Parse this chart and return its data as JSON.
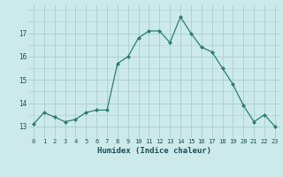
{
  "x": [
    0,
    1,
    2,
    3,
    4,
    5,
    6,
    7,
    8,
    9,
    10,
    11,
    12,
    13,
    14,
    15,
    16,
    17,
    18,
    19,
    20,
    21,
    22,
    23
  ],
  "y": [
    13.1,
    13.6,
    13.4,
    13.2,
    13.3,
    13.6,
    13.7,
    13.7,
    15.7,
    16.0,
    16.8,
    17.1,
    17.1,
    16.6,
    17.7,
    17.0,
    16.4,
    16.2,
    15.5,
    14.8,
    13.9,
    13.2,
    13.5,
    13.0
  ],
  "xlabel": "Humidex (Indice chaleur)",
  "ylim": [
    12.5,
    18.2
  ],
  "xlim": [
    -0.5,
    23.5
  ],
  "yticks": [
    13,
    14,
    15,
    16,
    17
  ],
  "xticks": [
    0,
    1,
    2,
    3,
    4,
    5,
    6,
    7,
    8,
    9,
    10,
    11,
    12,
    13,
    14,
    15,
    16,
    17,
    18,
    19,
    20,
    21,
    22,
    23
  ],
  "line_color": "#2e7d6e",
  "bg_color": "#cceaea",
  "grid_color": "#aacece",
  "marker": "D"
}
